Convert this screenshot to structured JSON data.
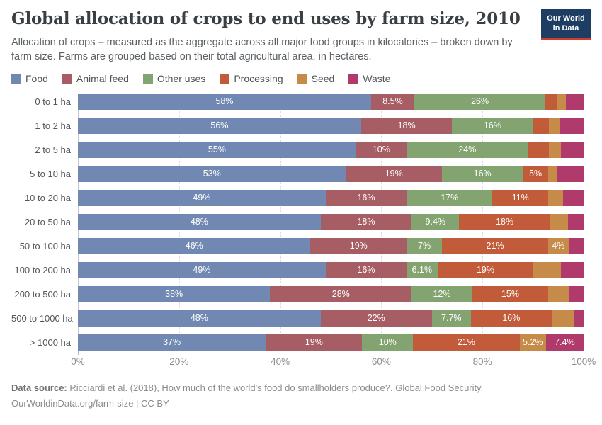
{
  "header": {
    "title": "Global allocation of crops to end uses by farm size, 2010",
    "subtitle": "Allocation of crops – measured as the aggregate across all major food groups in kilocalories – broken down by farm size. Farms are grouped based on their total agricultural area, in hectares.",
    "logo": {
      "line1": "Our World",
      "line2": "in Data",
      "bg_color": "#1d3d63",
      "stripe_color": "#d13b32"
    }
  },
  "legend": [
    {
      "label": "Food",
      "color": "#7189b2"
    },
    {
      "label": "Animal feed",
      "color": "#a65d63"
    },
    {
      "label": "Other uses",
      "color": "#83a471"
    },
    {
      "label": "Processing",
      "color": "#c25b39"
    },
    {
      "label": "Seed",
      "color": "#c68b49"
    },
    {
      "label": "Waste",
      "color": "#b13a6c"
    }
  ],
  "chart_data": {
    "type": "bar",
    "stacked": true,
    "orientation": "horizontal",
    "unit": "%",
    "xlim": [
      0,
      100
    ],
    "grid": true,
    "categories": [
      "0 to 1 ha",
      "1 to 2 ha",
      "2 to 5 ha",
      "5 to 10 ha",
      "10 to 20 ha",
      "20 to 50 ha",
      "50 to 100 ha",
      "100 to 200 ha",
      "200 to 500 ha",
      "500 to 1000 ha",
      "> 1000 ha"
    ],
    "series": [
      {
        "name": "Food",
        "color": "#7189b2",
        "values": [
          58,
          56,
          55,
          53,
          49,
          48,
          46,
          49,
          38,
          48,
          37
        ],
        "labels": [
          "58%",
          "56%",
          "55%",
          "53%",
          "49%",
          "48%",
          "46%",
          "49%",
          "38%",
          "48%",
          "37%"
        ]
      },
      {
        "name": "Animal feed",
        "color": "#a65d63",
        "values": [
          8.5,
          18,
          10,
          19,
          16,
          18,
          19,
          16,
          28,
          22,
          19
        ],
        "labels": [
          "8.5%",
          "18%",
          "10%",
          "19%",
          "16%",
          "18%",
          "19%",
          "16%",
          "28%",
          "22%",
          "19%"
        ]
      },
      {
        "name": "Other uses",
        "color": "#83a471",
        "values": [
          26,
          16,
          24,
          16,
          17,
          9.4,
          7,
          6.1,
          12,
          7.7,
          10
        ],
        "labels": [
          "26%",
          "16%",
          "24%",
          "16%",
          "17%",
          "9.4%",
          "7%",
          "6.1%",
          "12%",
          "7.7%",
          "10%"
        ]
      },
      {
        "name": "Processing",
        "color": "#c25b39",
        "values": [
          2.2,
          3.2,
          4.1,
          5,
          11,
          18,
          21,
          19,
          15,
          16,
          21
        ],
        "labels": [
          "",
          "",
          "",
          "5%",
          "11%",
          "18%",
          "21%",
          "19%",
          "15%",
          "16%",
          "21%"
        ]
      },
      {
        "name": "Seed",
        "color": "#c68b49",
        "values": [
          1.8,
          2.0,
          2.4,
          1.8,
          2.9,
          3.5,
          4,
          5.4,
          4.0,
          4.3,
          5.2
        ],
        "labels": [
          "",
          "",
          "",
          "",
          "",
          "",
          "4%",
          "",
          "",
          "",
          "5.2%"
        ]
      },
      {
        "name": "Waste",
        "color": "#b13a6c",
        "values": [
          3.5,
          4.8,
          4.5,
          5.2,
          4.1,
          3.1,
          3,
          4.5,
          3.0,
          2.0,
          7.4
        ],
        "labels": [
          "",
          "",
          "",
          "",
          "",
          "",
          "",
          "",
          "",
          "",
          "7.4%"
        ]
      }
    ],
    "x_ticks": [
      {
        "value": 0,
        "label": "0%"
      },
      {
        "value": 20,
        "label": "20%"
      },
      {
        "value": 40,
        "label": "40%"
      },
      {
        "value": 60,
        "label": "60%"
      },
      {
        "value": 80,
        "label": "80%"
      },
      {
        "value": 100,
        "label": "100%"
      }
    ]
  },
  "footer": {
    "source_label": "Data source:",
    "source_text": " Ricciardi et al. (2018), How much of the world's food do smallholders produce?. Global Food Security.",
    "link": "OurWorldinData.org/farm-size",
    "separator": " | ",
    "license": "CC BY"
  }
}
